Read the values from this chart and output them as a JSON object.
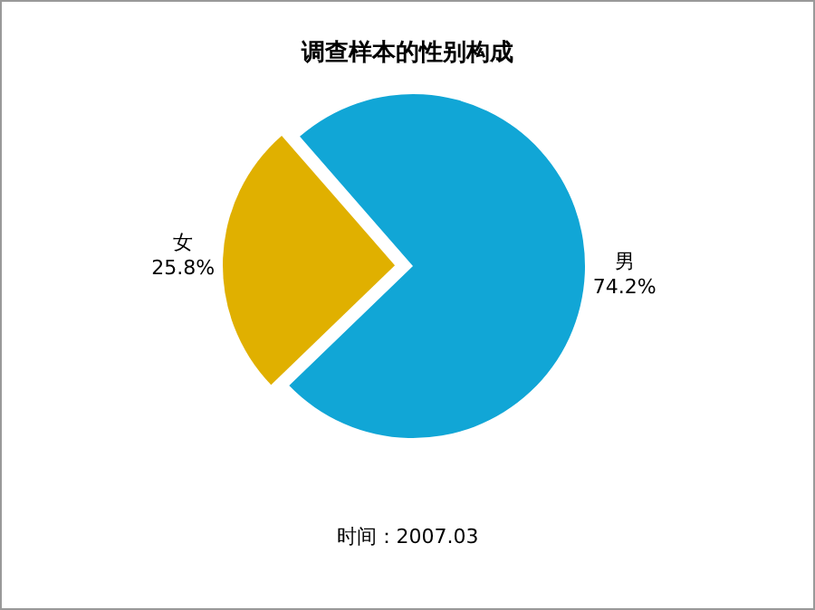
{
  "chart_data": {
    "type": "pie",
    "title": "调查样本的性别构成",
    "categories": [
      "女",
      "男"
    ],
    "values": [
      25.8,
      74.2
    ],
    "value_labels": [
      "25.8%",
      "74.2%"
    ],
    "colors": [
      "#e0b000",
      "#11a6d6"
    ],
    "annotations": [
      "时间：2007.03"
    ],
    "legend": false
  }
}
